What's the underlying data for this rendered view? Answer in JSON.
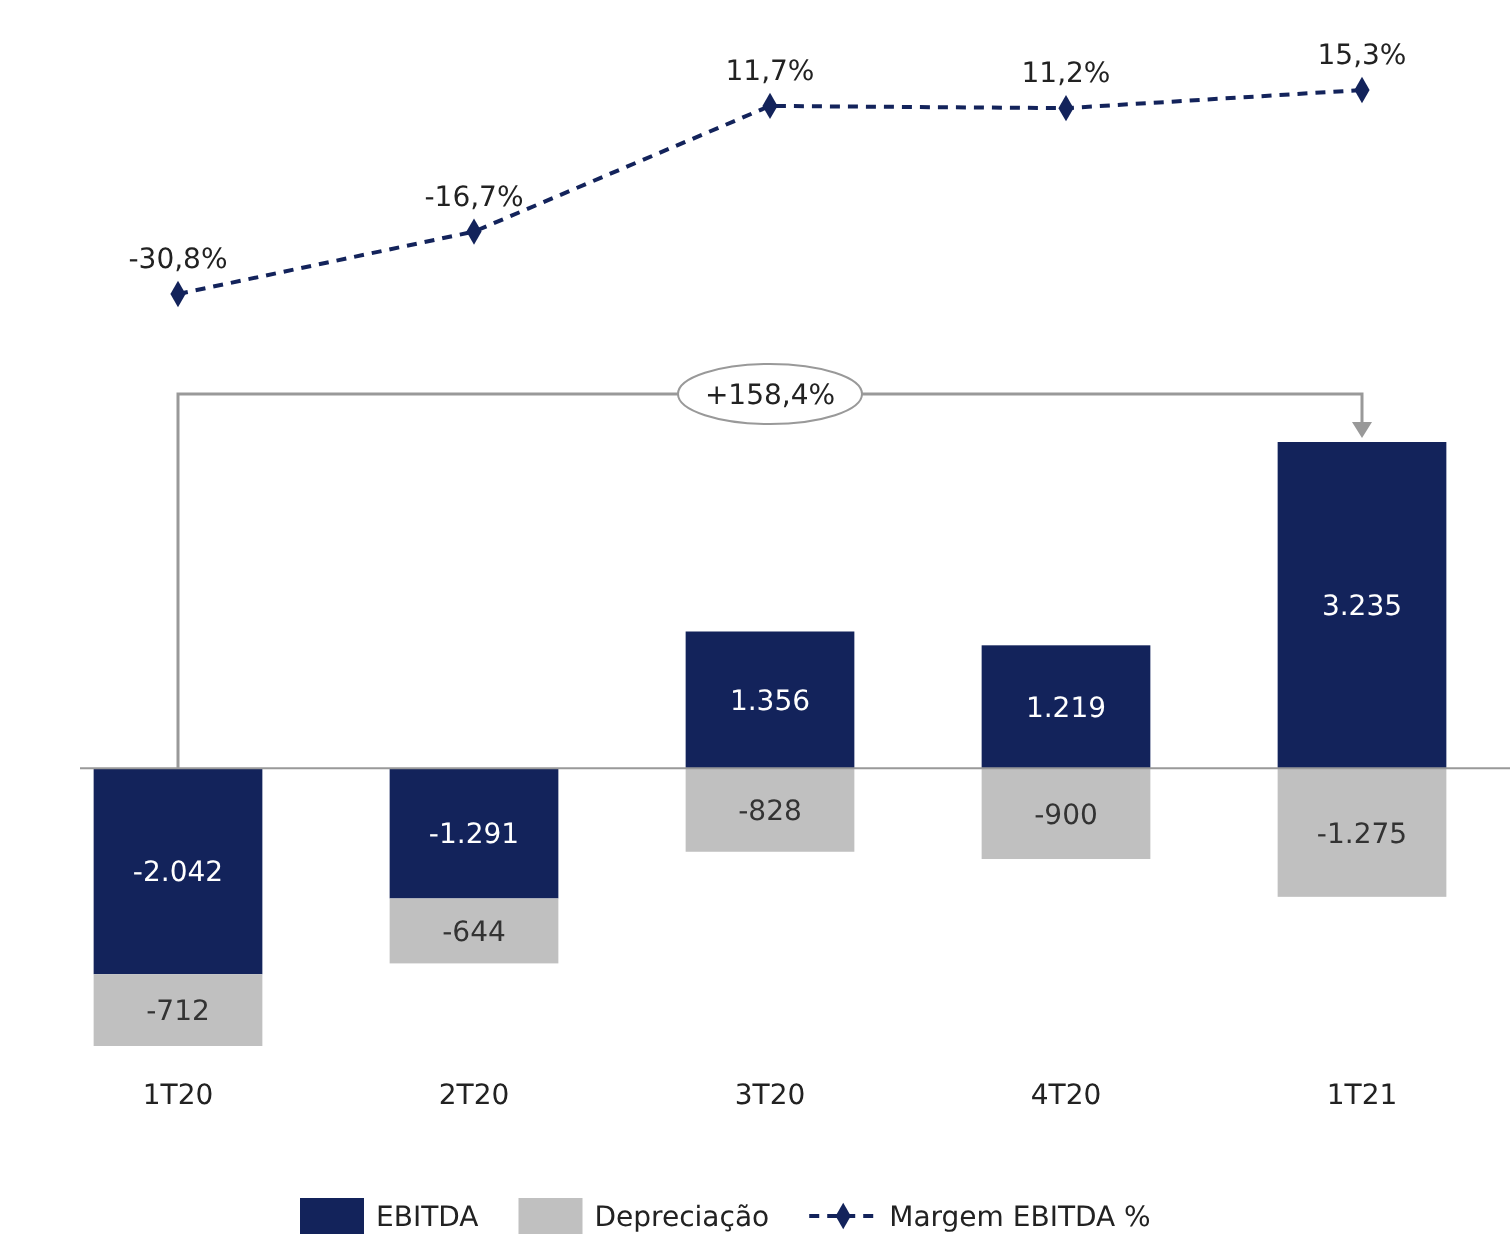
{
  "chart_data": [
    {
      "type": "line",
      "categories": [
        null,
        null,
        null,
        null,
        null
      ],
      "legend": "bottom",
      "line_style": "dashed",
      "marker": "diamond",
      "series": [
        {
          "name": "Margem EBITDA %",
          "color": "#13235b",
          "values": [
            -30.8,
            -16.7,
            11.7,
            11.2,
            15.3
          ],
          "value_labels": [
            "-30,8%",
            "-16,7%",
            "11,7%",
            "11,2%",
            "15,3%"
          ]
        }
      ]
    },
    {
      "type": "bar",
      "stacked": true,
      "categories": [
        "1T20",
        "2T20",
        "3T20",
        "4T20",
        "1T21"
      ],
      "tick_labels": "x",
      "legend": "bottom",
      "series": [
        {
          "name": "EBITDA",
          "color": "#13235b",
          "values": [
            -2042,
            -1291,
            1356,
            1219,
            3235
          ],
          "value_labels": [
            "-2.042",
            "-1.291",
            "1.356",
            "1.219",
            "3.235"
          ]
        },
        {
          "name": "Depreciação",
          "color": "#c0c0c0",
          "values": [
            -712,
            -644,
            -828,
            -900,
            -1275
          ],
          "value_labels": [
            "-712",
            "-644",
            "-828",
            "-900",
            "-1.275"
          ]
        }
      ],
      "annotations": [
        "+158,4%"
      ]
    }
  ]
}
